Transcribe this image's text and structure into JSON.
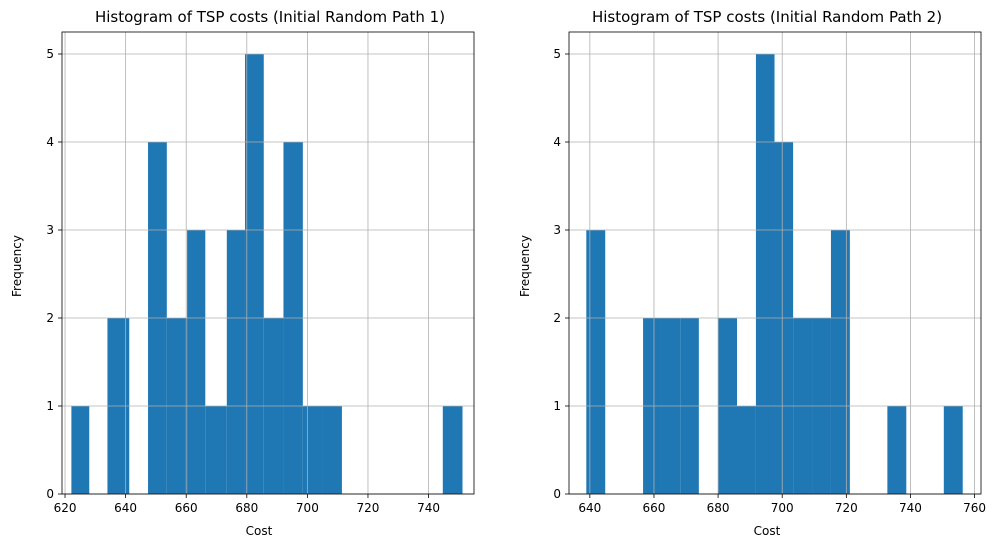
{
  "chart_data": [
    {
      "type": "bar",
      "subtype": "histogram",
      "title": "Histogram of TSP costs (Initial Random Path 1)",
      "xlabel": "Cost",
      "ylabel": "Frequency",
      "xlim": [
        619,
        755
      ],
      "ylim": [
        0,
        5.25
      ],
      "xticks": [
        620,
        640,
        660,
        680,
        700,
        720,
        740
      ],
      "yticks": [
        0,
        1,
        2,
        3,
        4,
        5
      ],
      "grid": true,
      "bins": [
        {
          "x0": 622.1,
          "x1": 628.0,
          "count": 1
        },
        {
          "x0": 628.0,
          "x1": 634.0,
          "count": 0
        },
        {
          "x0": 634.0,
          "x1": 641.2,
          "count": 2
        },
        {
          "x0": 641.2,
          "x1": 647.4,
          "count": 0
        },
        {
          "x0": 647.4,
          "x1": 653.6,
          "count": 4
        },
        {
          "x0": 653.6,
          "x1": 660.3,
          "count": 2
        },
        {
          "x0": 660.3,
          "x1": 666.3,
          "count": 3
        },
        {
          "x0": 666.3,
          "x1": 673.4,
          "count": 1
        },
        {
          "x0": 673.4,
          "x1": 679.4,
          "count": 3
        },
        {
          "x0": 679.4,
          "x1": 685.6,
          "count": 5
        },
        {
          "x0": 685.6,
          "x1": 692.1,
          "count": 2
        },
        {
          "x0": 692.1,
          "x1": 698.5,
          "count": 4
        },
        {
          "x0": 698.5,
          "x1": 705.0,
          "count": 1
        },
        {
          "x0": 705.0,
          "x1": 711.4,
          "count": 1
        },
        {
          "x0": 711.4,
          "x1": 744.7,
          "count": 0
        },
        {
          "x0": 744.7,
          "x1": 751.2,
          "count": 1
        }
      ]
    },
    {
      "type": "bar",
      "subtype": "histogram",
      "title": "Histogram of TSP costs (Initial Random Path 2)",
      "xlabel": "Cost",
      "ylabel": "Frequency",
      "xlim": [
        633.5,
        762
      ],
      "ylim": [
        0,
        5.25
      ],
      "xticks": [
        640,
        660,
        680,
        700,
        720,
        740,
        760
      ],
      "yticks": [
        0,
        1,
        2,
        3,
        4,
        5
      ],
      "grid": true,
      "bins": [
        {
          "x0": 638.9,
          "x1": 644.8,
          "count": 3
        },
        {
          "x0": 644.8,
          "x1": 656.6,
          "count": 0
        },
        {
          "x0": 656.6,
          "x1": 662.5,
          "count": 2
        },
        {
          "x0": 662.5,
          "x1": 668.2,
          "count": 2
        },
        {
          "x0": 668.2,
          "x1": 674.0,
          "count": 2
        },
        {
          "x0": 674.0,
          "x1": 680.0,
          "count": 0
        },
        {
          "x0": 680.0,
          "x1": 685.9,
          "count": 2
        },
        {
          "x0": 685.9,
          "x1": 691.8,
          "count": 1
        },
        {
          "x0": 691.8,
          "x1": 697.6,
          "count": 5
        },
        {
          "x0": 697.6,
          "x1": 703.4,
          "count": 4
        },
        {
          "x0": 703.4,
          "x1": 709.3,
          "count": 2
        },
        {
          "x0": 709.3,
          "x1": 715.2,
          "count": 2
        },
        {
          "x0": 715.2,
          "x1": 721.1,
          "count": 3
        },
        {
          "x0": 721.1,
          "x1": 732.8,
          "count": 0
        },
        {
          "x0": 732.8,
          "x1": 738.7,
          "count": 1
        },
        {
          "x0": 738.7,
          "x1": 750.4,
          "count": 0
        },
        {
          "x0": 750.4,
          "x1": 756.3,
          "count": 1
        }
      ]
    }
  ]
}
